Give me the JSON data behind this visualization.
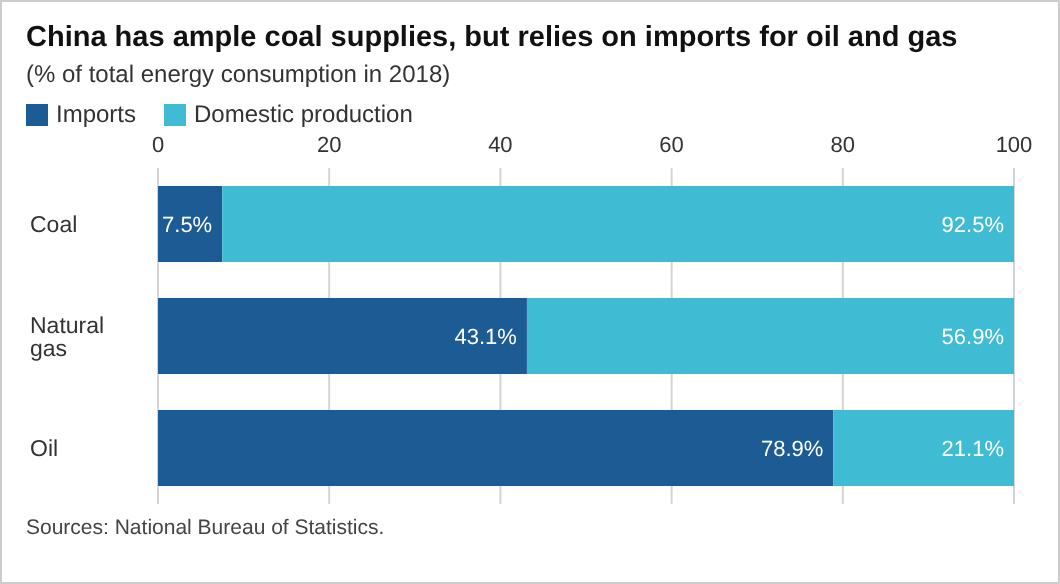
{
  "chart_data": {
    "type": "bar",
    "orientation": "horizontal",
    "stacked": true,
    "title": "China has ample coal supplies, but relies on imports for oil and gas",
    "subtitle": "(% of total energy consumption in 2018)",
    "categories": [
      "Coal",
      "Natural gas",
      "Oil"
    ],
    "series": [
      {
        "name": "Imports",
        "color": "#1d5b94",
        "values": [
          7.5,
          43.1,
          78.9
        ],
        "value_labels": [
          "7.5%",
          "43.1%",
          "78.9%"
        ]
      },
      {
        "name": "Domestic production",
        "color": "#3fbcd4",
        "values": [
          92.5,
          56.9,
          21.1
        ],
        "value_labels": [
          "92.5%",
          "56.9%",
          "21.1%"
        ]
      }
    ],
    "xlim": [
      0,
      100
    ],
    "xticks": [
      0,
      20,
      40,
      60,
      80,
      100
    ],
    "grid": "x",
    "legend": "top left",
    "annotations": [
      "Sources: National Bureau of Statistics."
    ]
  }
}
